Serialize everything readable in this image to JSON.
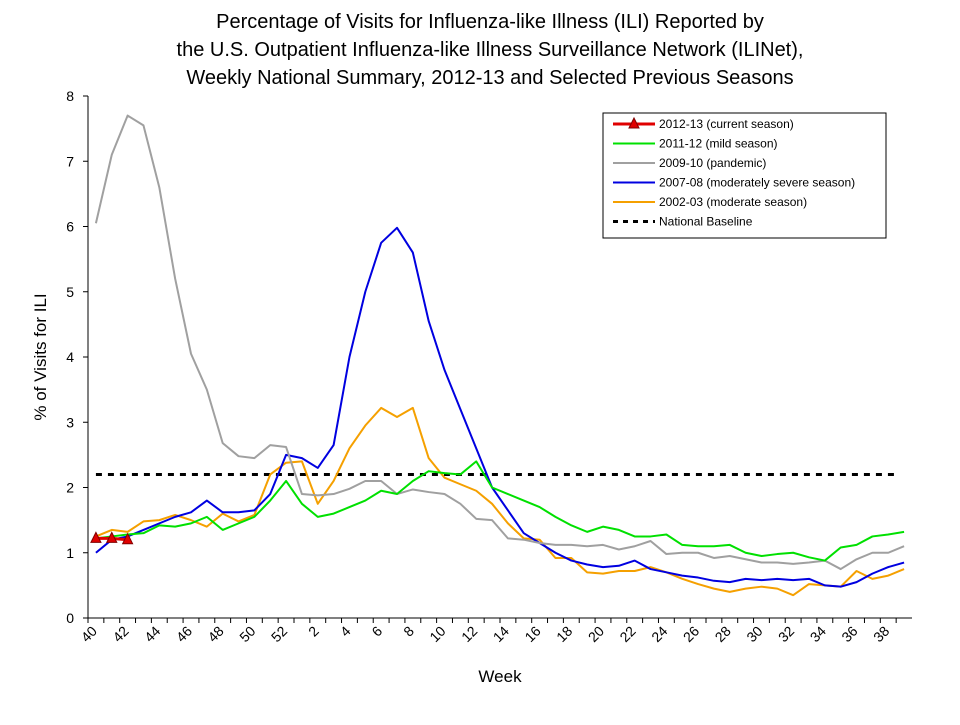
{
  "chart_data": {
    "type": "line",
    "title": [
      "Percentage of Visits for Influenza-like Illness (ILI) Reported by",
      "the U.S. Outpatient Influenza-like Illness Surveillance Network (ILINet),",
      "Weekly National Summary, 2012-13 and Selected Previous Seasons"
    ],
    "x_label": "Week",
    "y_label": "% of Visits for ILI",
    "categories": [
      "40",
      null,
      "42",
      null,
      "44",
      null,
      "46",
      null,
      "48",
      null,
      "50",
      null,
      "52",
      null,
      "2",
      null,
      "4",
      null,
      "6",
      null,
      "8",
      null,
      "10",
      null,
      "12",
      null,
      "14",
      null,
      "16",
      null,
      "18",
      null,
      "20",
      null,
      "22",
      null,
      "24",
      null,
      "26",
      null,
      "28",
      null,
      "30",
      null,
      "32",
      null,
      "34",
      null,
      "36",
      null,
      "38",
      null
    ],
    "ylim": [
      0,
      8
    ],
    "yticks": [
      0,
      1,
      2,
      3,
      4,
      5,
      6,
      7,
      8
    ],
    "series": [
      {
        "name": "2012-13 (current season)",
        "color": "#e00000",
        "marker": "triangle",
        "values": [
          1.22,
          1.22,
          1.2,
          null,
          null,
          null,
          null,
          null,
          null,
          null,
          null,
          null,
          null,
          null,
          null,
          null,
          null,
          null,
          null,
          null,
          null,
          null,
          null,
          null,
          null,
          null,
          null,
          null,
          null,
          null,
          null,
          null,
          null,
          null,
          null,
          null,
          null,
          null,
          null,
          null,
          null,
          null,
          null,
          null,
          null,
          null,
          null,
          null,
          null,
          null,
          null,
          null
        ]
      },
      {
        "name": "2011-12 (mild season)",
        "color": "#00e000",
        "values": [
          1.22,
          1.25,
          1.28,
          1.3,
          1.42,
          1.4,
          1.45,
          1.55,
          1.35,
          1.45,
          1.55,
          1.8,
          2.1,
          1.75,
          1.55,
          1.6,
          1.7,
          1.8,
          1.95,
          1.9,
          2.1,
          2.25,
          2.22,
          2.2,
          2.4,
          2.0,
          1.9,
          1.8,
          1.7,
          1.55,
          1.42,
          1.32,
          1.4,
          1.35,
          1.25,
          1.25,
          1.28,
          1.12,
          1.1,
          1.1,
          1.12,
          1.0,
          0.95,
          0.98,
          1.0,
          0.93,
          0.88,
          1.08,
          1.12,
          1.25,
          1.28,
          1.32
        ]
      },
      {
        "name": "2009-10 (pandemic)",
        "color": "#a0a0a0",
        "values": [
          6.05,
          7.1,
          7.7,
          7.55,
          6.6,
          5.2,
          4.05,
          3.5,
          2.68,
          2.48,
          2.45,
          2.65,
          2.62,
          1.9,
          1.88,
          1.9,
          1.98,
          2.1,
          2.1,
          1.9,
          1.97,
          1.93,
          1.9,
          1.75,
          1.52,
          1.5,
          1.22,
          1.2,
          1.15,
          1.12,
          1.12,
          1.1,
          1.12,
          1.05,
          1.1,
          1.18,
          0.98,
          1.0,
          1.0,
          0.92,
          0.95,
          0.9,
          0.85,
          0.85,
          0.83,
          0.85,
          0.88,
          0.75,
          0.9,
          1.0,
          1.0,
          1.1
        ]
      },
      {
        "name": "2007-08 (moderately severe season)",
        "color": "#0000e0",
        "values": [
          1.0,
          1.2,
          1.25,
          1.35,
          1.45,
          1.55,
          1.62,
          1.8,
          1.62,
          1.62,
          1.65,
          1.9,
          2.5,
          2.45,
          2.3,
          2.65,
          4.0,
          5.0,
          5.75,
          5.98,
          5.6,
          4.55,
          3.8,
          3.2,
          2.6,
          2.0,
          1.65,
          1.3,
          1.15,
          1.0,
          0.88,
          0.82,
          0.78,
          0.8,
          0.88,
          0.75,
          0.7,
          0.65,
          0.62,
          0.57,
          0.55,
          0.6,
          0.58,
          0.6,
          0.58,
          0.6,
          0.5,
          0.48,
          0.55,
          0.68,
          0.78,
          0.85
        ]
      },
      {
        "name": "2002-03 (moderate season)",
        "color": "#f5a000",
        "values": [
          1.25,
          1.35,
          1.32,
          1.48,
          1.5,
          1.58,
          1.5,
          1.4,
          1.6,
          1.48,
          1.58,
          2.2,
          2.38,
          2.4,
          1.75,
          2.1,
          2.6,
          2.95,
          3.22,
          3.08,
          3.22,
          2.45,
          2.15,
          2.05,
          1.95,
          1.75,
          1.45,
          1.22,
          1.2,
          0.92,
          0.92,
          0.7,
          0.68,
          0.72,
          0.72,
          0.78,
          0.7,
          0.6,
          0.52,
          0.45,
          0.4,
          0.45,
          0.48,
          0.45,
          0.35,
          0.52,
          0.5,
          0.48,
          0.72,
          0.6,
          0.65,
          0.75
        ]
      }
    ],
    "baseline": {
      "name": "National Baseline",
      "value": 2.2,
      "color": "#000000"
    },
    "legend": "upper-right",
    "grid": false
  }
}
